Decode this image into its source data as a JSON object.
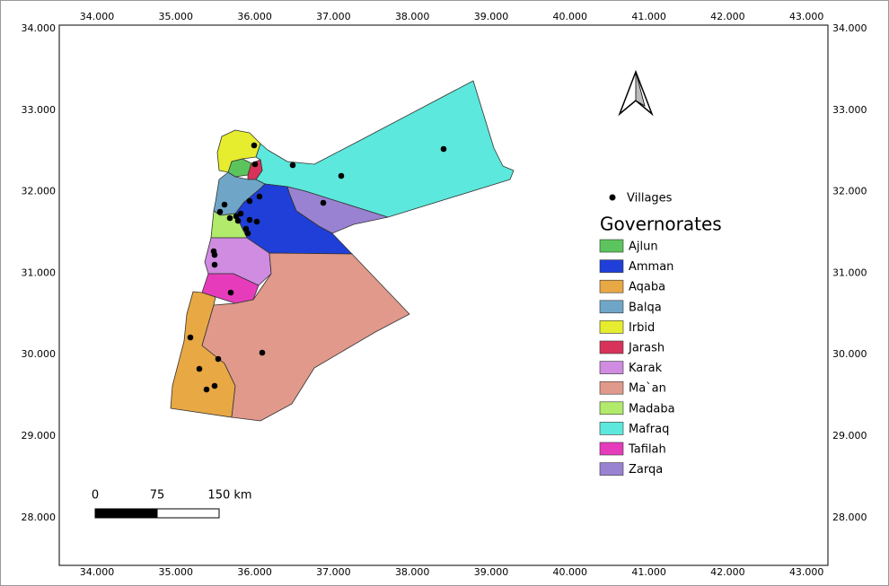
{
  "map": {
    "lon_ticks": [
      "34.000",
      "35.000",
      "36.000",
      "37.000",
      "38.000",
      "39.000",
      "40.000",
      "41.000",
      "42.000",
      "43.000"
    ],
    "lat_ticks": [
      "34.000",
      "33.000",
      "32.000",
      "31.000",
      "30.000",
      "29.000",
      "28.000"
    ],
    "scale_bar": [
      "0",
      "75",
      "150 km"
    ]
  },
  "legend": {
    "points": "Villages",
    "title": "Governorates",
    "items": [
      {
        "label": "Ajlun",
        "color": "#5cc45c"
      },
      {
        "label": "Amman",
        "color": "#1f3fd8"
      },
      {
        "label": "Aqaba",
        "color": "#e8a844"
      },
      {
        "label": "Balqa",
        "color": "#6fa6c8"
      },
      {
        "label": "Irbid",
        "color": "#e6ec2e"
      },
      {
        "label": "Jarash",
        "color": "#d8325a"
      },
      {
        "label": "Karak",
        "color": "#cf8ce0"
      },
      {
        "label": "Ma`an",
        "color": "#e0998a"
      },
      {
        "label": "Madaba",
        "color": "#b2ea6c"
      },
      {
        "label": "Mafraq",
        "color": "#5ce8dc"
      },
      {
        "label": "Tafilah",
        "color": "#e63cbc"
      },
      {
        "label": "Zarqa",
        "color": "#9a82d2"
      }
    ]
  }
}
